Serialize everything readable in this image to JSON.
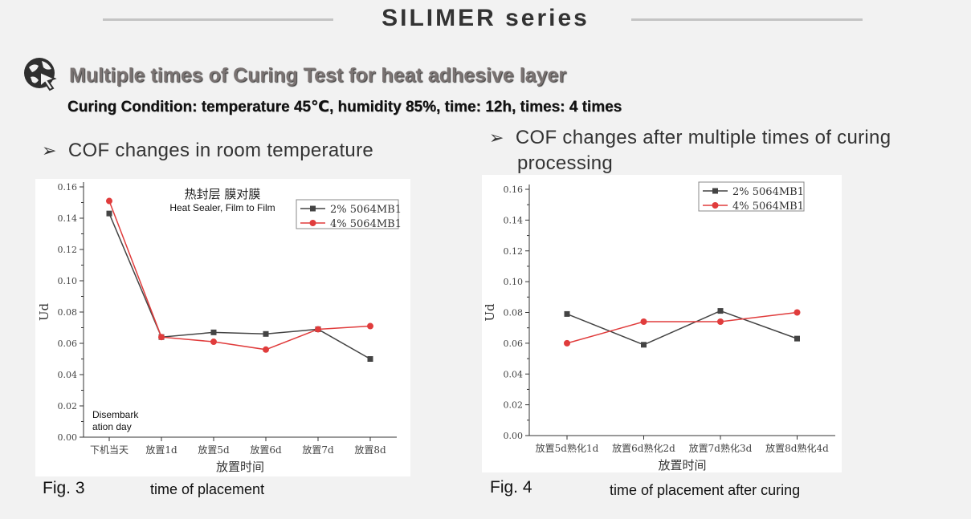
{
  "page": {
    "title": "SILIMER series",
    "heading": "Multiple times of Curing Test for heat adhesive layer",
    "condition": "Curing Condition: temperature 45℃, humidity 85%, time: 12h, times: 4 times",
    "bullet_left": "COF changes in room temperature",
    "bullet_right_line1": "COF changes after multiple times of curing",
    "bullet_right_line2": "processing",
    "bullet_symbol": "➢",
    "fig3_label": "Fig. 3",
    "fig3_caption": "time of placement",
    "fig4_label": "Fig. 4",
    "fig4_caption": "time of placement after curing",
    "icon": "cursor-globe-icon"
  },
  "chart_data": [
    {
      "type": "line",
      "title": "热封层 膜对膜",
      "subtitle": "Heat Sealer, Film to Film",
      "annotation": "Disembark ation day",
      "annotation_lines": [
        "Disembark",
        "ation day"
      ],
      "xlabel": "放置时间",
      "ylabel": "Ud",
      "categories": [
        "下机当天",
        "放置1d",
        "放置5d",
        "放置6d",
        "放置7d",
        "放置8d"
      ],
      "ylim": [
        0,
        0.16
      ],
      "yticks": [
        "0.00",
        "0.02",
        "0.04",
        "0.06",
        "0.08",
        "0.10",
        "0.12",
        "0.14",
        "0.16"
      ],
      "legend_position": "top-right",
      "grid": false,
      "series": [
        {
          "name": "2% 5064MB1",
          "color": "#444444",
          "marker": "square",
          "values": [
            0.143,
            0.064,
            0.067,
            0.066,
            0.069,
            0.05
          ]
        },
        {
          "name": "4% 5064MB1",
          "color": "#e03c3c",
          "marker": "circle",
          "values": [
            0.151,
            0.064,
            0.061,
            0.056,
            0.069,
            0.071
          ]
        }
      ]
    },
    {
      "type": "line",
      "xlabel": "放置时间",
      "ylabel": "Ud",
      "categories": [
        "放置5d熟化1d",
        "放置6d熟化2d",
        "放置7d熟化3d",
        "放置8d熟化4d"
      ],
      "ylim": [
        0,
        0.16
      ],
      "yticks": [
        "0.00",
        "0.02",
        "0.04",
        "0.06",
        "0.08",
        "0.10",
        "0.12",
        "0.14",
        "0.16"
      ],
      "legend_position": "top-right",
      "grid": false,
      "series": [
        {
          "name": "2% 5064MB1",
          "color": "#444444",
          "marker": "square",
          "values": [
            0.079,
            0.059,
            0.081,
            0.063
          ]
        },
        {
          "name": "4% 5064MB1",
          "color": "#e03c3c",
          "marker": "circle",
          "values": [
            0.06,
            0.074,
            0.074,
            0.08
          ]
        }
      ]
    }
  ]
}
